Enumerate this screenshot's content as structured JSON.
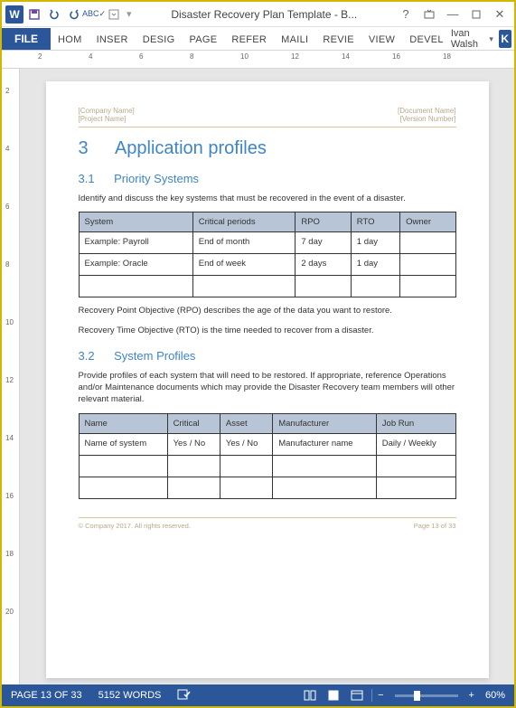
{
  "titlebar": {
    "title": "Disaster Recovery Plan Template - B..."
  },
  "ribbon": {
    "file": "FILE",
    "tabs": [
      "HOM",
      "INSER",
      "DESIG",
      "PAGE",
      "REFER",
      "MAILI",
      "REVIE",
      "VIEW",
      "DEVEL"
    ],
    "user": "Ivan Walsh",
    "user_initial": "K"
  },
  "ruler": {
    "marks": [
      2,
      4,
      6,
      8,
      10,
      12,
      14,
      16,
      18
    ]
  },
  "vruler": {
    "marks": [
      2,
      4,
      6,
      8,
      10,
      12,
      14,
      16,
      18,
      20
    ]
  },
  "doc": {
    "header_left1": "[Company Name]",
    "header_left2": "[Project Name]",
    "header_right1": "[Document Name]",
    "header_right2": "[Version Number]",
    "section_num": "3",
    "section_title": "Application profiles",
    "sub1_num": "3.1",
    "sub1_title": "Priority Systems",
    "sub1_text": "Identify and discuss the key systems that must be recovered in the event of a disaster.",
    "table1": {
      "headers": [
        "System",
        "Critical periods",
        "RPO",
        "RTO",
        "Owner"
      ],
      "rows": [
        [
          "Example: Payroll",
          "End of month",
          "7 day",
          "1 day",
          ""
        ],
        [
          "Example: Oracle",
          "End of week",
          "2 days",
          "1 day",
          ""
        ],
        [
          "",
          "",
          "",
          "",
          ""
        ]
      ]
    },
    "note1": "Recovery Point Objective (RPO) describes the age of the data you want to restore.",
    "note2": "Recovery Time Objective (RTO) is the time needed to recover from a disaster.",
    "sub2_num": "3.2",
    "sub2_title": "System Profiles",
    "sub2_text": "Provide profiles of each system that will need to be restored. If appropriate, reference Operations and/or Maintenance documents which may provide the Disaster Recovery team members will other relevant material.",
    "table2": {
      "headers": [
        "Name",
        "Critical",
        "Asset",
        "Manufacturer",
        "Job Run"
      ],
      "rows": [
        [
          "Name of system",
          "Yes / No",
          "Yes / No",
          "Manufacturer name",
          "Daily / Weekly"
        ],
        [
          "",
          "",
          "",
          "",
          ""
        ],
        [
          "",
          "",
          "",
          "",
          ""
        ]
      ]
    },
    "footer_left": "© Company 2017. All rights reserved.",
    "footer_right": "Page 13 of 33"
  },
  "statusbar": {
    "page": "PAGE 13 OF 33",
    "words": "5152 WORDS",
    "zoom": "60%"
  }
}
